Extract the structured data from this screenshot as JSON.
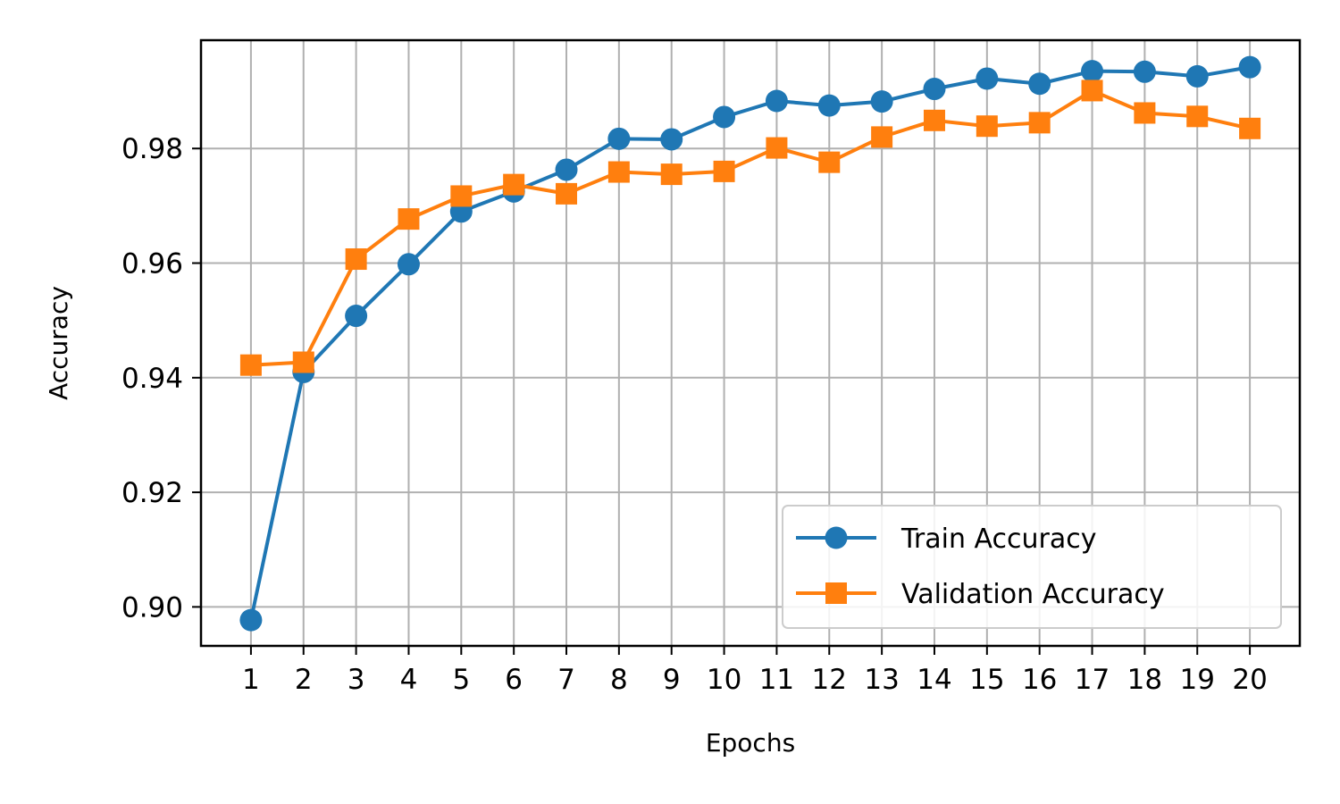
{
  "chart_data": {
    "type": "line",
    "title": "",
    "xlabel": "Epochs",
    "ylabel": "Accuracy",
    "x": [
      1,
      2,
      3,
      4,
      5,
      6,
      7,
      8,
      9,
      10,
      11,
      12,
      13,
      14,
      15,
      16,
      17,
      18,
      19,
      20
    ],
    "x_tick_labels": [
      "1",
      "2",
      "3",
      "4",
      "5",
      "6",
      "7",
      "8",
      "9",
      "10",
      "11",
      "12",
      "13",
      "14",
      "15",
      "16",
      "17",
      "18",
      "19",
      "20"
    ],
    "y_ticks": [
      0.9,
      0.92,
      0.94,
      0.96,
      0.98
    ],
    "y_tick_labels": [
      "0.90",
      "0.92",
      "0.94",
      "0.96",
      "0.98"
    ],
    "ylim": [
      0.8932,
      0.9989
    ],
    "xlim": [
      0.05,
      20.95
    ],
    "grid": true,
    "legend_position": "lower right",
    "series": [
      {
        "name": "Train Accuracy",
        "color": "#1f77b4",
        "marker": "circle",
        "values": [
          0.8977,
          0.941,
          0.9508,
          0.9598,
          0.969,
          0.9725,
          0.9763,
          0.9817,
          0.9816,
          0.9855,
          0.9883,
          0.9875,
          0.9882,
          0.9904,
          0.9922,
          0.9913,
          0.9935,
          0.9934,
          0.9926,
          0.9942
        ]
      },
      {
        "name": "Validation Accuracy",
        "color": "#ff7f0e",
        "marker": "square",
        "values": [
          0.9422,
          0.9427,
          0.9607,
          0.9677,
          0.9717,
          0.9737,
          0.9721,
          0.9759,
          0.9755,
          0.976,
          0.9801,
          0.9776,
          0.982,
          0.9849,
          0.9839,
          0.9845,
          0.9901,
          0.9862,
          0.9856,
          0.9835
        ]
      }
    ]
  }
}
